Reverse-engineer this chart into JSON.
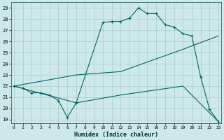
{
  "bg_color": "#cde8e8",
  "grid_color": "#aacccc",
  "line_color": "#006666",
  "line1_x": [
    0,
    1,
    2,
    3,
    4,
    5,
    6,
    7,
    10,
    11,
    12,
    13,
    14,
    15,
    16,
    17,
    18,
    19,
    20,
    21,
    22,
    23
  ],
  "line1_y": [
    22.0,
    21.8,
    21.4,
    21.4,
    21.2,
    20.7,
    19.2,
    20.5,
    27.7,
    27.8,
    27.8,
    28.1,
    29.0,
    28.5,
    28.5,
    27.5,
    27.3,
    26.7,
    26.5,
    22.8,
    19.9,
    18.8
  ],
  "line2_x": [
    0,
    7,
    12,
    19,
    23
  ],
  "line2_y": [
    22.0,
    23.0,
    23.3,
    25.3,
    26.5
  ],
  "line3_x": [
    0,
    7,
    12,
    19,
    23
  ],
  "line3_y": [
    22.0,
    20.5,
    21.2,
    22.0,
    18.8
  ],
  "xlim": [
    -0.3,
    23.3
  ],
  "ylim_min": 18.8,
  "ylim_max": 29.5,
  "yticks": [
    19,
    20,
    21,
    22,
    23,
    24,
    25,
    26,
    27,
    28,
    29
  ],
  "xticks": [
    0,
    1,
    2,
    3,
    4,
    5,
    6,
    7,
    8,
    9,
    10,
    11,
    12,
    13,
    14,
    15,
    16,
    17,
    18,
    19,
    20,
    21,
    22,
    23
  ],
  "xlabel": "Humidex (Indice chaleur)"
}
